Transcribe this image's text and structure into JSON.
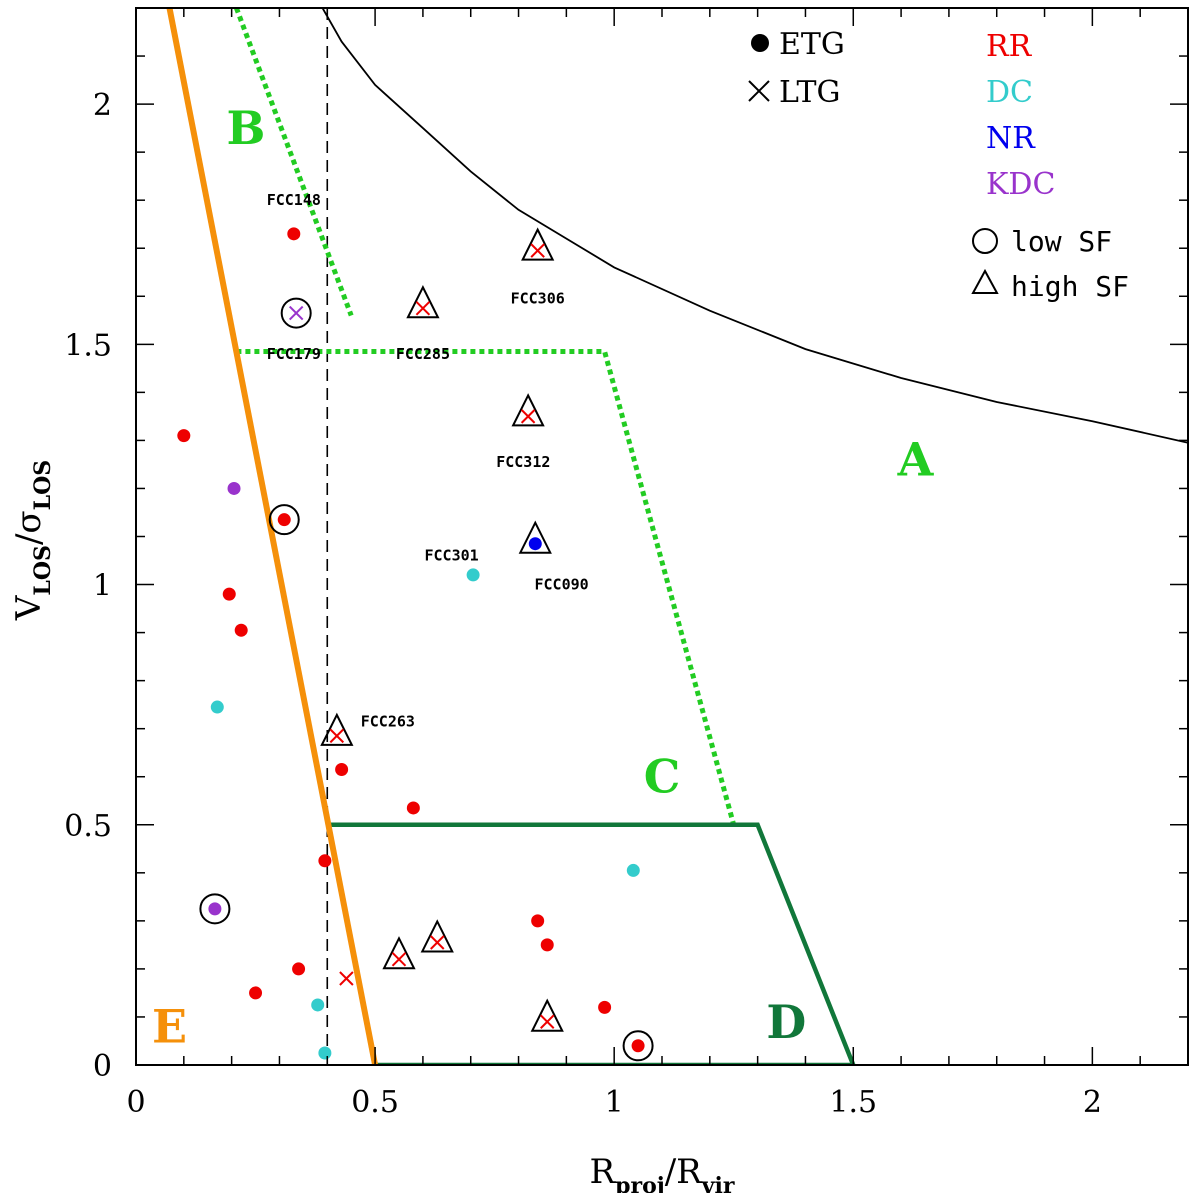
{
  "chart_data": {
    "type": "scatter",
    "xlabel": {
      "main": "R",
      "sub1": "proj",
      "slash": "/R",
      "sub2": "vir"
    },
    "ylabel": {
      "main": "V",
      "sub1": "LOS",
      "slash": "/σ",
      "sub2": "LOS"
    },
    "xlim": [
      0,
      2.2
    ],
    "ylim": [
      0,
      2.2
    ],
    "xticks": [
      0,
      0.5,
      1,
      1.5,
      2
    ],
    "xtick_labels": [
      "0",
      "0.5",
      "1",
      "1.5",
      "2"
    ],
    "yticks": [
      0,
      0.5,
      1,
      1.5,
      2
    ],
    "ytick_labels": [
      "0",
      "0.5",
      "1",
      "1.5",
      "2"
    ],
    "grid": false,
    "colors": {
      "RR": "#ee0000",
      "DC": "#33cccc",
      "NR": "#0000ee",
      "KDC": "#9933cc",
      "region_light": "#22cc22",
      "region_dark": "#11773a",
      "region_E": "#f5900a"
    },
    "legend": {
      "position": "top-right",
      "markers": [
        {
          "symbol": "filled-circle",
          "label": "ETG"
        },
        {
          "symbol": "cross",
          "label": "LTG"
        }
      ],
      "kinematics": [
        {
          "key": "RR",
          "label": "RR"
        },
        {
          "key": "DC",
          "label": "DC"
        },
        {
          "key": "NR",
          "label": "NR"
        },
        {
          "key": "KDC",
          "label": "KDC"
        }
      ],
      "sf": [
        {
          "symbol": "open-circle",
          "label": "low SF"
        },
        {
          "symbol": "open-triangle",
          "label": "high SF"
        }
      ]
    },
    "regions": [
      {
        "label": "A",
        "x": 1.63,
        "y": 1.26,
        "color": "region_light"
      },
      {
        "label": "B",
        "x": 0.23,
        "y": 1.95,
        "color": "region_light"
      },
      {
        "label": "C",
        "x": 1.1,
        "y": 0.6,
        "color": "region_light"
      },
      {
        "label": "D",
        "x": 1.36,
        "y": 0.09,
        "color": "region_dark"
      },
      {
        "label": "E",
        "x": 0.07,
        "y": 0.08,
        "color": "region_E"
      }
    ],
    "lines": {
      "escape_curve": [
        [
          0.39,
          2.2
        ],
        [
          0.43,
          2.13
        ],
        [
          0.5,
          2.04
        ],
        [
          0.6,
          1.95
        ],
        [
          0.7,
          1.86
        ],
        [
          0.8,
          1.78
        ],
        [
          0.9,
          1.72
        ],
        [
          1.0,
          1.66
        ],
        [
          1.2,
          1.57
        ],
        [
          1.4,
          1.49
        ],
        [
          1.6,
          1.43
        ],
        [
          1.8,
          1.38
        ],
        [
          2.0,
          1.34
        ],
        [
          2.2,
          1.295
        ]
      ],
      "vertical_dashed_x": 0.4,
      "region_E_boundary": [
        [
          0.07,
          2.2
        ],
        [
          0.5,
          0.0
        ]
      ],
      "region_B_boundary": [
        [
          0.21,
          2.2
        ],
        [
          0.45,
          1.56
        ]
      ],
      "region_C_boundary": [
        [
          0.21,
          1.485
        ],
        [
          0.98,
          1.485
        ],
        [
          1.25,
          0.5
        ]
      ],
      "region_D_boundary": [
        [
          0.4,
          0.5
        ],
        [
          1.3,
          0.5
        ],
        [
          1.5,
          0.0
        ],
        [
          0.5,
          0.0
        ]
      ]
    },
    "points": [
      {
        "x": 0.33,
        "y": 1.73,
        "kin": "RR",
        "type": "ETG",
        "sf": "",
        "name": "FCC148"
      },
      {
        "x": 0.335,
        "y": 1.565,
        "kin": "KDC",
        "type": "LTG",
        "sf": "low",
        "name": "FCC179"
      },
      {
        "x": 0.6,
        "y": 1.575,
        "kin": "RR",
        "type": "LTG",
        "sf": "high",
        "name": "FCC285"
      },
      {
        "x": 0.84,
        "y": 1.695,
        "kin": "RR",
        "type": "LTG",
        "sf": "high",
        "name": "FCC306"
      },
      {
        "x": 0.82,
        "y": 1.35,
        "kin": "RR",
        "type": "LTG",
        "sf": "high",
        "name": "FCC312"
      },
      {
        "x": 0.835,
        "y": 1.085,
        "kin": "NR",
        "type": "ETG",
        "sf": "high",
        "name": "FCC090"
      },
      {
        "x": 0.705,
        "y": 1.02,
        "kin": "DC",
        "type": "ETG",
        "sf": "",
        "name": "FCC301"
      },
      {
        "x": 0.42,
        "y": 0.685,
        "kin": "RR",
        "type": "LTG",
        "sf": "high",
        "name": "FCC263"
      },
      {
        "x": 0.1,
        "y": 1.31,
        "kin": "RR",
        "type": "ETG",
        "sf": "",
        "name": ""
      },
      {
        "x": 0.205,
        "y": 1.2,
        "kin": "KDC",
        "type": "ETG",
        "sf": "",
        "name": ""
      },
      {
        "x": 0.31,
        "y": 1.135,
        "kin": "RR",
        "type": "ETG",
        "sf": "low",
        "name": ""
      },
      {
        "x": 0.195,
        "y": 0.98,
        "kin": "RR",
        "type": "ETG",
        "sf": "",
        "name": ""
      },
      {
        "x": 0.22,
        "y": 0.905,
        "kin": "RR",
        "type": "ETG",
        "sf": "",
        "name": ""
      },
      {
        "x": 0.17,
        "y": 0.745,
        "kin": "DC",
        "type": "ETG",
        "sf": "",
        "name": ""
      },
      {
        "x": 0.43,
        "y": 0.615,
        "kin": "RR",
        "type": "ETG",
        "sf": "",
        "name": ""
      },
      {
        "x": 0.58,
        "y": 0.535,
        "kin": "RR",
        "type": "ETG",
        "sf": "",
        "name": ""
      },
      {
        "x": 0.395,
        "y": 0.425,
        "kin": "RR",
        "type": "ETG",
        "sf": "",
        "name": ""
      },
      {
        "x": 1.04,
        "y": 0.405,
        "kin": "DC",
        "type": "ETG",
        "sf": "",
        "name": ""
      },
      {
        "x": 0.165,
        "y": 0.325,
        "kin": "KDC",
        "type": "ETG",
        "sf": "low",
        "name": ""
      },
      {
        "x": 0.84,
        "y": 0.3,
        "kin": "RR",
        "type": "ETG",
        "sf": "",
        "name": ""
      },
      {
        "x": 0.86,
        "y": 0.25,
        "kin": "RR",
        "type": "ETG",
        "sf": "",
        "name": ""
      },
      {
        "x": 0.63,
        "y": 0.255,
        "kin": "RR",
        "type": "LTG",
        "sf": "high",
        "name": ""
      },
      {
        "x": 0.55,
        "y": 0.22,
        "kin": "RR",
        "type": "LTG",
        "sf": "high",
        "name": ""
      },
      {
        "x": 0.34,
        "y": 0.2,
        "kin": "RR",
        "type": "ETG",
        "sf": "",
        "name": ""
      },
      {
        "x": 0.44,
        "y": 0.18,
        "kin": "RR",
        "type": "LTG",
        "sf": "",
        "name": ""
      },
      {
        "x": 0.25,
        "y": 0.15,
        "kin": "RR",
        "type": "ETG",
        "sf": "",
        "name": ""
      },
      {
        "x": 0.38,
        "y": 0.125,
        "kin": "DC",
        "type": "ETG",
        "sf": "",
        "name": ""
      },
      {
        "x": 0.98,
        "y": 0.12,
        "kin": "RR",
        "type": "ETG",
        "sf": "",
        "name": ""
      },
      {
        "x": 0.86,
        "y": 0.09,
        "kin": "RR",
        "type": "LTG",
        "sf": "high",
        "name": ""
      },
      {
        "x": 1.05,
        "y": 0.04,
        "kin": "RR",
        "type": "ETG",
        "sf": "low",
        "name": ""
      },
      {
        "x": 0.395,
        "y": 0.025,
        "kin": "DC",
        "type": "ETG",
        "sf": "",
        "name": ""
      }
    ],
    "name_labels": [
      {
        "text": "FCC148",
        "x": 0.33,
        "y": 1.8,
        "anchor": "middle"
      },
      {
        "text": "FCC179",
        "x": 0.33,
        "y": 1.48,
        "anchor": "middle"
      },
      {
        "text": "FCC285",
        "x": 0.6,
        "y": 1.48,
        "anchor": "middle"
      },
      {
        "text": "FCC306",
        "x": 0.84,
        "y": 1.595,
        "anchor": "middle"
      },
      {
        "text": "FCC312",
        "x": 0.81,
        "y": 1.255,
        "anchor": "middle"
      },
      {
        "text": "FCC301",
        "x": 0.66,
        "y": 1.06,
        "anchor": "middle"
      },
      {
        "text": "FCC090",
        "x": 0.89,
        "y": 1.0,
        "anchor": "middle"
      },
      {
        "text": "FCC263",
        "x": 0.47,
        "y": 0.715,
        "anchor": "start"
      }
    ]
  }
}
